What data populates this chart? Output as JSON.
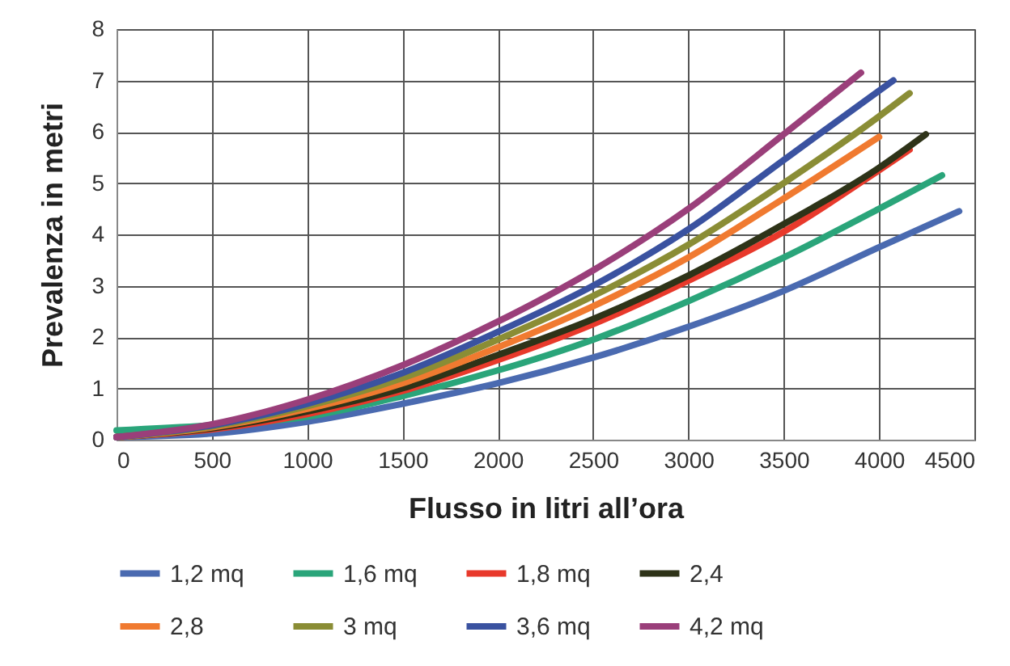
{
  "chart_data": {
    "type": "line",
    "xlabel": "Flusso in litri all’ora",
    "ylabel": "Prevalenza in metri",
    "xlim": [
      0,
      4500
    ],
    "ylim": [
      0,
      8
    ],
    "xticks": [
      0,
      500,
      1000,
      1500,
      2000,
      2500,
      3000,
      3500,
      4000,
      4500
    ],
    "yticks": [
      0,
      1,
      2,
      3,
      4,
      5,
      6,
      7,
      8
    ],
    "grid": true,
    "legend": "bottom",
    "marker": "none",
    "line_style": "solid",
    "series": [
      {
        "name": "1,2 mq",
        "color": "#4a6ab0",
        "x": [
          0,
          500,
          1000,
          1500,
          2000,
          2500,
          3000,
          3500,
          4000,
          4420
        ],
        "values": [
          0.05,
          0.12,
          0.35,
          0.7,
          1.1,
          1.6,
          2.2,
          2.9,
          3.75,
          4.45
        ]
      },
      {
        "name": "1,6 mq",
        "color": "#2aa57a",
        "x": [
          0,
          500,
          1000,
          1500,
          2000,
          2500,
          3000,
          3500,
          4000,
          4330
        ],
        "values": [
          0.18,
          0.28,
          0.45,
          0.85,
          1.35,
          1.95,
          2.7,
          3.55,
          4.5,
          5.15
        ]
      },
      {
        "name": "1,8 mq",
        "color": "#e8392b",
        "x": [
          0,
          500,
          1000,
          1500,
          2000,
          2500,
          3000,
          3500,
          4000,
          4160
        ],
        "values": [
          0.05,
          0.2,
          0.5,
          0.95,
          1.55,
          2.25,
          3.1,
          4.05,
          5.25,
          5.65
        ]
      },
      {
        "name": "2,4",
        "color": "#2e3318",
        "x": [
          0,
          500,
          1000,
          1500,
          2000,
          2500,
          3000,
          3500,
          4000,
          4245
        ],
        "values": [
          0.05,
          0.22,
          0.55,
          1.0,
          1.65,
          2.35,
          3.2,
          4.2,
          5.3,
          5.95
        ]
      },
      {
        "name": "2,8",
        "color": "#f07a30",
        "x": [
          0,
          500,
          1000,
          1500,
          2000,
          2500,
          3000,
          3500,
          4000
        ],
        "values": [
          0.05,
          0.24,
          0.6,
          1.1,
          1.8,
          2.6,
          3.55,
          4.7,
          5.9
        ]
      },
      {
        "name": "3 mq",
        "color": "#8a8d35",
        "x": [
          0,
          500,
          1000,
          1500,
          2000,
          2500,
          3000,
          3500,
          4000,
          4160
        ],
        "values": [
          0.05,
          0.26,
          0.65,
          1.2,
          1.95,
          2.8,
          3.8,
          5.0,
          6.3,
          6.75
        ]
      },
      {
        "name": "3,6 mq",
        "color": "#3a52a0",
        "x": [
          0,
          500,
          1000,
          1500,
          2000,
          2500,
          3000,
          3500,
          4000,
          4075
        ],
        "values": [
          0.05,
          0.28,
          0.7,
          1.3,
          2.1,
          3.0,
          4.1,
          5.45,
          6.8,
          7.0
        ]
      },
      {
        "name": "4,2 mq",
        "color": "#9a3f7a",
        "x": [
          0,
          500,
          1000,
          1500,
          2000,
          2500,
          3000,
          3500,
          3905
        ],
        "values": [
          0.05,
          0.3,
          0.78,
          1.45,
          2.3,
          3.3,
          4.5,
          5.95,
          7.15
        ]
      }
    ]
  }
}
